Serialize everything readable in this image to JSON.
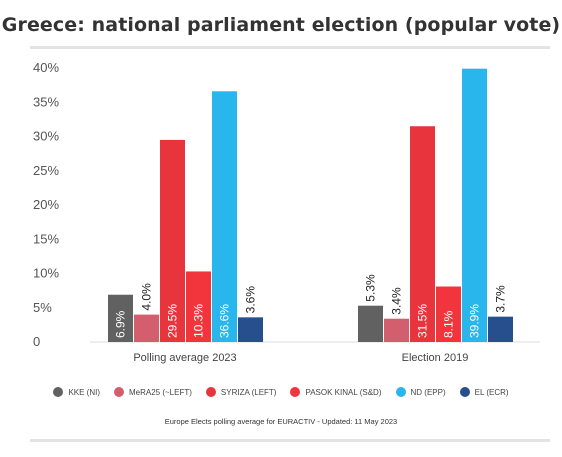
{
  "chart_data": {
    "type": "bar",
    "title": "Greece: national parliament election (popular vote)",
    "categories": [
      "Polling average 2023",
      "Election 2019"
    ],
    "series": [
      {
        "name": "KKE (NI)",
        "color": "#616161",
        "values": [
          6.9,
          5.3
        ],
        "labels": [
          "6.9%",
          "5.3%"
        ]
      },
      {
        "name": "MeRA25 (~LEFT)",
        "color": "#d35f6e",
        "values": [
          4.0,
          3.4
        ],
        "labels": [
          "4.0%",
          "3.4%"
        ]
      },
      {
        "name": "SYRIZA (LEFT)",
        "color": "#e8343c",
        "values": [
          29.5,
          31.5
        ],
        "labels": [
          "29.5%",
          "31.5%"
        ]
      },
      {
        "name": "PASOK KINAL (S&D)",
        "color": "#f2353d",
        "values": [
          10.3,
          8.1
        ],
        "labels": [
          "10.3%",
          "8.1%"
        ]
      },
      {
        "name": "ND (EPP)",
        "color": "#29b6ec",
        "values": [
          36.6,
          39.9
        ],
        "labels": [
          "36.6%",
          "39.9%"
        ]
      },
      {
        "name": "EL (ECR)",
        "color": "#274f8e",
        "values": [
          3.6,
          3.7
        ],
        "labels": [
          "3.6%",
          "3.7%"
        ]
      }
    ],
    "ylim": [
      0,
      40
    ],
    "yticks": [
      0,
      5,
      10,
      15,
      20,
      25,
      30,
      35,
      40
    ],
    "yticklabels": [
      "0",
      "5%",
      "10%",
      "15%",
      "20%",
      "25%",
      "30%",
      "35%",
      "40%"
    ],
    "legend_position": "bottom",
    "grid": false
  },
  "source_note": "Europe Elects polling average for EURACTIV - Updated: 11 May 2023"
}
